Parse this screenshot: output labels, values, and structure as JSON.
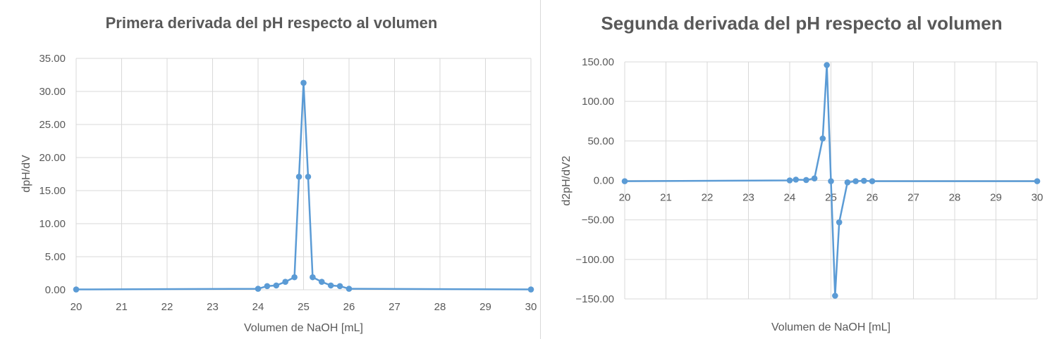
{
  "chart_data": [
    {
      "type": "line",
      "title": "Primera derivada del pH respecto al volumen",
      "xlabel": "Volumen de NaOH [mL]",
      "ylabel": "dpH/dV",
      "xlim": [
        20,
        30
      ],
      "ylim": [
        0,
        35
      ],
      "x_ticks": [
        "20",
        "21",
        "22",
        "23",
        "24",
        "25",
        "26",
        "27",
        "28",
        "29",
        "30"
      ],
      "y_ticks": [
        "0.00",
        "5.00",
        "10.00",
        "15.00",
        "20.00",
        "25.00",
        "30.00",
        "35.00"
      ],
      "grid": true,
      "series": [
        {
          "color": "#5b9bd5",
          "marker": "circle",
          "x": [
            20,
            24,
            24.2,
            24.4,
            24.6,
            24.8,
            24.9,
            25.0,
            25.1,
            25.2,
            25.4,
            25.6,
            25.8,
            26.0,
            30
          ],
          "y": [
            0.05,
            0.15,
            0.55,
            0.65,
            1.2,
            1.9,
            17.1,
            31.3,
            17.1,
            1.9,
            1.2,
            0.65,
            0.55,
            0.15,
            0.05
          ]
        }
      ]
    },
    {
      "type": "line",
      "title": "Segunda derivada del pH respecto al volumen",
      "xlabel": "Volumen de NaOH [mL]",
      "ylabel": "d2pH/dV2",
      "xlim": [
        20,
        30
      ],
      "ylim": [
        -150,
        150
      ],
      "x_ticks": [
        "20",
        "21",
        "22",
        "23",
        "24",
        "25",
        "26",
        "27",
        "28",
        "29",
        "30"
      ],
      "y_ticks": [
        "-150.00",
        "-100.00",
        "-50.00",
        "0.00",
        "50.00",
        "100.00",
        "150.00"
      ],
      "grid": true,
      "series": [
        {
          "color": "#5b9bd5",
          "marker": "circle",
          "x": [
            20,
            24,
            24.15,
            24.4,
            24.6,
            24.8,
            24.9,
            25.0,
            25.1,
            25.2,
            25.4,
            25.6,
            25.8,
            26.0,
            30
          ],
          "y": [
            -1,
            0,
            1,
            0.5,
            2.5,
            53,
            146,
            -1,
            -146,
            -53,
            -2.5,
            -1,
            -0.5,
            -1,
            -1
          ]
        }
      ]
    }
  ]
}
